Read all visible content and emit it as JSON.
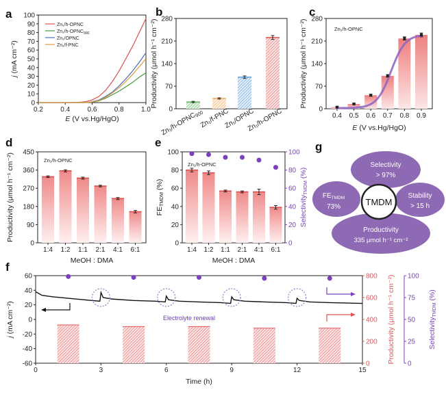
{
  "chart_data": [
    {
      "panel": "a",
      "type": "line",
      "xlabel": "E (V vs.Hg/HgO)",
      "ylabel": "j (mA cm⁻²)",
      "xlim": [
        0.2,
        1.0
      ],
      "ylim": [
        0,
        100
      ],
      "xticks": [
        0.2,
        0.4,
        0.6,
        0.8,
        1.0
      ],
      "yticks": [
        0,
        10,
        20,
        30,
        40,
        50,
        60,
        70,
        80,
        90,
        100
      ],
      "xticklabels": [
        "0.2",
        "0.4",
        "0.6",
        "0.8",
        "1.0"
      ],
      "yticklabels": [
        "0",
        "10",
        "20",
        "30",
        "40",
        "50",
        "60",
        "70",
        "80",
        "90",
        "100"
      ],
      "legend_position": "top-left",
      "series": [
        {
          "name": "Zn1/h-OPNC",
          "color": "#d94f50",
          "x": [
            0.2,
            0.4,
            0.5,
            0.55,
            0.6,
            0.65,
            0.7,
            0.75,
            0.8,
            0.85,
            0.9,
            0.95,
            1.0
          ],
          "y": [
            0,
            0,
            0.3,
            1,
            3,
            7,
            14,
            24,
            36,
            50,
            64,
            80,
            96
          ]
        },
        {
          "name": "Zn1/h-OPNC900",
          "color": "#3f9a3f",
          "x": [
            0.2,
            0.5,
            0.6,
            0.65,
            0.7,
            0.75,
            0.8,
            0.85,
            0.9,
            0.95,
            1.0
          ],
          "y": [
            0,
            0,
            0.5,
            2,
            5,
            9,
            13,
            18,
            23,
            29,
            34
          ]
        },
        {
          "name": "Zn1/OPNC",
          "color": "#4a6fb5",
          "x": [
            0.2,
            0.55,
            0.6,
            0.65,
            0.7,
            0.75,
            0.8,
            0.85,
            0.9,
            0.95,
            1.0
          ],
          "y": [
            0,
            0,
            1,
            3,
            7,
            12,
            19,
            27,
            36,
            46,
            57
          ]
        },
        {
          "name": "Zn1/f-PNC",
          "color": "#e39a3e",
          "x": [
            0.2,
            0.55,
            0.6,
            0.65,
            0.7,
            0.75,
            0.8,
            0.85,
            0.9,
            0.95,
            1.0
          ],
          "y": [
            0,
            0,
            0.8,
            2.5,
            6,
            11,
            17,
            24,
            32,
            41,
            50
          ]
        }
      ]
    },
    {
      "panel": "b",
      "type": "bar",
      "ylabel": "Productivity (μmol h⁻¹ cm⁻²)",
      "ylim": [
        0,
        280
      ],
      "yticks": [
        0,
        70,
        140,
        210,
        280
      ],
      "yticklabels": [
        "0",
        "70",
        "140",
        "210",
        "280"
      ],
      "categories": [
        "Zn1/h-OPNC900",
        "Zn1/f-PNC",
        "Zn1/OPNC",
        "Zn1/h-OPNC"
      ],
      "category_labels": [
        {
          "main": "Zn₁/h-OPNC",
          "sub": "900"
        },
        {
          "main": "Zn₁/f-PNC",
          "sub": ""
        },
        {
          "main": "Zn₁/OPNC",
          "sub": ""
        },
        {
          "main": "Zn₁/h-OPNC",
          "sub": ""
        }
      ],
      "values": [
        21,
        32,
        98,
        221
      ],
      "errors": [
        2,
        2,
        4,
        6
      ],
      "colors": [
        "#5cb85c",
        "#f0a95a",
        "#5aa0dc",
        "#e05555"
      ]
    },
    {
      "panel": "c",
      "type": "bar",
      "annotation": "Zn1/h-OPNC",
      "xlabel": "E (V vs.Hg/HgO)",
      "ylabel": "Productivity (μmol h⁻¹ cm⁻²)",
      "ylim": [
        0,
        280
      ],
      "yticks": [
        0,
        70,
        140,
        210,
        280
      ],
      "yticklabels": [
        "0",
        "70",
        "140",
        "210",
        "280"
      ],
      "categories": [
        "0.4",
        "0.5",
        "0.6",
        "0.7",
        "0.8",
        "0.9"
      ],
      "values": [
        5,
        15,
        42,
        102,
        218,
        229
      ],
      "errors": [
        2,
        2,
        3,
        4,
        5,
        6
      ],
      "fit_curve_color": "#8d63c2"
    },
    {
      "panel": "d",
      "type": "bar",
      "annotation": "Zn1/h-OPNC",
      "xlabel": "MeOH : DMA",
      "ylabel": "Productivity (μmol h⁻¹ cm⁻²)",
      "ylim": [
        0,
        450
      ],
      "yticks": [
        0,
        90,
        180,
        270,
        360,
        450
      ],
      "yticklabels": [
        "0",
        "90",
        "180",
        "270",
        "360",
        "450"
      ],
      "categories": [
        "1:4",
        "1:2",
        "1:1",
        "2:1",
        "4:1",
        "6:1"
      ],
      "values": [
        327,
        356,
        320,
        281,
        219,
        154
      ],
      "errors": [
        4,
        5,
        5,
        4,
        5,
        6
      ]
    },
    {
      "panel": "e",
      "type": "bar",
      "annotation": "Zn1/h-OPNC",
      "xlabel": "MeOH : DMA",
      "ylabel": "FE_TMDM (%)",
      "ylabel2": "Selectivity_TMDM (%)",
      "ylim": [
        0,
        100
      ],
      "yticks": [
        0,
        20,
        40,
        60,
        80,
        100
      ],
      "yticklabels": [
        "0",
        "20",
        "40",
        "60",
        "80",
        "100"
      ],
      "categories": [
        "1:4",
        "1:2",
        "1:1",
        "2:1",
        "4:1",
        "6:1"
      ],
      "values": [
        80,
        77,
        57,
        56,
        56,
        39
      ],
      "errors": [
        2,
        2,
        1,
        1,
        3,
        2
      ],
      "series": [
        {
          "name": "Selectivity_TMDM",
          "axis": "right",
          "values": [
            98,
            97,
            94,
            94,
            91,
            83
          ]
        }
      ],
      "marker_color": "#7b3fbf"
    },
    {
      "panel": "f",
      "type": "line",
      "xlabel": "Time (h)",
      "ylabel": "j (mA cm⁻²)",
      "ylabel2": "Productivity (μmol h⁻¹ cm⁻²)",
      "ylabel3": "Selectivity_TMDM (%)",
      "xlim": [
        0,
        15
      ],
      "ylim": [
        -60,
        60
      ],
      "ylim2": [
        0,
        800
      ],
      "ylim3": [
        0,
        100
      ],
      "xticks": [
        0,
        3,
        6,
        9,
        12,
        15
      ],
      "xticklabels": [
        "0",
        "3",
        "6",
        "9",
        "12",
        "15"
      ],
      "yticks": [
        -60,
        -40,
        -20,
        0,
        20,
        40,
        60
      ],
      "yticklabels": [
        "-60",
        "-40",
        "-20",
        "0",
        "20",
        "40",
        "60"
      ],
      "yticks2": [
        0,
        200,
        400,
        600,
        800
      ],
      "yticklabels2": [
        "0",
        "200",
        "400",
        "600",
        "800"
      ],
      "yticks3": [
        0,
        25,
        50,
        75,
        100
      ],
      "yticklabels3": [
        "0",
        "25",
        "50",
        "75",
        "100"
      ],
      "annotation": "Electrolyte renewal",
      "series": [
        {
          "name": "current density",
          "axis": "left",
          "color": "#000000",
          "x": [
            0,
            0.3,
            0.8,
            1.5,
            2.2,
            2.95,
            3.0,
            3.1,
            3.5,
            4.5,
            5.5,
            5.95,
            6.0,
            6.1,
            6.6,
            7.5,
            8.5,
            8.95,
            9.0,
            9.1,
            9.6,
            10.5,
            11.5,
            11.95,
            12.0,
            12.1,
            12.6,
            13.5,
            15.0
          ],
          "y": [
            38,
            33,
            31,
            29,
            27,
            25,
            37,
            30,
            28,
            26,
            25,
            24,
            32,
            27,
            25,
            24,
            23,
            22,
            31,
            27,
            25,
            24,
            23,
            22,
            29,
            26,
            24,
            23,
            22
          ]
        },
        {
          "name": "Productivity",
          "axis": "right",
          "color": "#e05555",
          "x": [
            1.5,
            4.5,
            7.5,
            10.5,
            13.5
          ],
          "values": [
            350,
            335,
            335,
            320,
            320
          ]
        },
        {
          "name": "Selectivity_TMDM",
          "axis": "right2",
          "color": "#7b3fbf",
          "x": [
            1.5,
            4.5,
            7.5,
            10.5,
            13.5
          ],
          "values": [
            99,
            98,
            98,
            97,
            97
          ]
        }
      ]
    }
  ],
  "panel_labels": [
    "a",
    "b",
    "c",
    "d",
    "e",
    "f",
    "g"
  ],
  "g": {
    "center": "TMDM",
    "selectivity": {
      "line1": "Selectivity",
      "line2": "> 97%"
    },
    "fe": {
      "line1": "FE",
      "sub": "TMDM",
      "line2": "73%"
    },
    "stability": {
      "line1": "Stability",
      "line2": "> 15 h"
    },
    "productivity": {
      "line1": "Productivity",
      "line2": "335 μmol h⁻¹ cm⁻²"
    },
    "ellipse_color": "#8d6ab3"
  }
}
